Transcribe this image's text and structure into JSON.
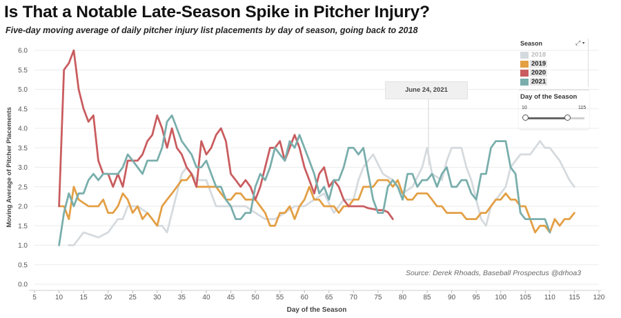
{
  "title": "Is That a Notable Late-Season Spike in Pitcher Injury?",
  "subtitle": "Five-day moving average of daily pitcher injury list placements by day of season, going back to 2018",
  "source": "Source: Derek Rhoads, Baseball Prospectus @drhoa3",
  "tooltip": "June 24, 2021",
  "legend": {
    "title": "Season",
    "controls": "⤢ ▾",
    "items": [
      {
        "label": "2018",
        "color": "#d5dade"
      },
      {
        "label": "2019",
        "color": "#e39f44"
      },
      {
        "label": "2020",
        "color": "#c95c5f"
      },
      {
        "label": "2021",
        "color": "#79aeac"
      }
    ]
  },
  "filter": {
    "title": "Day of the Season",
    "min_label": "10",
    "max_label": "115",
    "range_start": 10,
    "range_end": 115,
    "selected_end": 85
  },
  "chart_data": {
    "type": "line",
    "xlabel": "Day of the Season",
    "ylabel": "Moving Average of Pitcher Placements",
    "xlim": [
      5,
      120
    ],
    "ylim": [
      0,
      6
    ],
    "xticks": [
      "5",
      "10",
      "15",
      "20",
      "25",
      "30",
      "35",
      "40",
      "45",
      "50",
      "55",
      "60",
      "65",
      "70",
      "75",
      "80",
      "85",
      "90",
      "95",
      "100",
      "105",
      "110",
      "115",
      "120"
    ],
    "yticks": [
      "0.0",
      "0.5",
      "1.0",
      "1.5",
      "2.0",
      "2.5",
      "3.0",
      "3.5",
      "4.0",
      "4.5",
      "5.0",
      "5.5",
      "6.0"
    ],
    "series": [
      {
        "name": "2018",
        "color": "#d5dade",
        "x": [
          12,
          13,
          15,
          18,
          20,
          22,
          23,
          24,
          26,
          28,
          30,
          31,
          32,
          34,
          35,
          36,
          38,
          40,
          41,
          42,
          44,
          46,
          48,
          50,
          52,
          54,
          56,
          58,
          60,
          62,
          64,
          66,
          68,
          70,
          71,
          72,
          73,
          74,
          76,
          78,
          80,
          82,
          84,
          85,
          86,
          88,
          89,
          90,
          92,
          93,
          94,
          96,
          97,
          98,
          100,
          101,
          102,
          104,
          106,
          108,
          109,
          110,
          112,
          114,
          115
        ],
        "y": [
          1.0,
          1.0,
          1.33,
          1.2,
          1.33,
          1.67,
          1.67,
          2.0,
          2.0,
          1.83,
          1.5,
          1.5,
          1.33,
          2.33,
          2.83,
          3.0,
          2.67,
          2.67,
          2.33,
          2.0,
          2.0,
          2.0,
          2.0,
          1.83,
          1.67,
          1.67,
          1.83,
          2.0,
          2.0,
          2.17,
          2.33,
          1.83,
          2.17,
          2.17,
          2.67,
          3.0,
          3.17,
          3.33,
          2.83,
          2.67,
          2.33,
          2.5,
          3.0,
          3.5,
          2.83,
          2.67,
          3.17,
          3.5,
          3.5,
          3.0,
          2.67,
          1.67,
          1.5,
          2.0,
          2.33,
          2.5,
          3.0,
          3.33,
          3.33,
          3.67,
          3.5,
          3.5,
          3.17,
          2.67,
          2.5
        ]
      },
      {
        "name": "2019",
        "color": "#e39f44",
        "x": [
          10,
          11,
          12,
          13,
          14,
          16,
          18,
          19,
          20,
          21,
          22,
          23,
          24,
          25,
          26,
          27,
          28,
          29,
          30,
          31,
          32,
          33,
          34,
          35,
          36,
          37,
          38,
          39,
          40,
          41,
          42,
          43,
          44,
          45,
          46,
          47,
          48,
          49,
          50,
          51,
          52,
          53,
          54,
          55,
          56,
          57,
          58,
          59,
          60,
          61,
          62,
          63,
          64,
          65,
          66,
          67,
          68,
          69,
          70,
          71,
          72,
          73,
          74,
          75,
          76,
          77,
          78,
          79,
          80,
          81,
          82,
          83,
          84,
          85,
          86,
          87,
          88,
          89,
          90,
          91,
          92,
          93,
          94,
          95,
          96,
          97,
          98,
          99,
          100,
          101,
          102,
          103,
          104,
          105,
          106,
          107,
          108,
          109,
          110,
          111,
          112,
          113,
          114,
          115
        ],
        "y": [
          2.0,
          2.0,
          1.67,
          2.5,
          2.17,
          2.0,
          2.0,
          2.17,
          1.83,
          1.83,
          2.0,
          2.33,
          2.17,
          1.83,
          2.0,
          1.67,
          1.83,
          1.67,
          1.5,
          2.0,
          2.17,
          2.33,
          2.5,
          2.67,
          2.67,
          2.83,
          2.5,
          2.5,
          2.5,
          2.5,
          2.5,
          2.33,
          2.17,
          2.17,
          2.33,
          2.33,
          2.17,
          2.17,
          2.17,
          2.0,
          1.83,
          1.5,
          1.5,
          1.83,
          1.83,
          2.0,
          1.67,
          2.0,
          2.17,
          2.5,
          2.17,
          2.17,
          2.0,
          2.0,
          2.0,
          1.83,
          2.0,
          2.0,
          2.17,
          2.17,
          2.5,
          2.5,
          2.5,
          2.67,
          2.67,
          2.67,
          2.5,
          2.67,
          2.33,
          2.17,
          2.17,
          2.33,
          2.33,
          2.33,
          2.17,
          2.0,
          2.0,
          1.83,
          1.83,
          1.83,
          1.83,
          1.67,
          1.67,
          1.67,
          1.83,
          1.83,
          2.0,
          2.17,
          2.17,
          2.33,
          2.17,
          2.17,
          2.0,
          2.0,
          1.67,
          1.33,
          1.5,
          1.5,
          1.33,
          1.67,
          1.5,
          1.67,
          1.67,
          1.83
        ]
      },
      {
        "name": "2020",
        "color": "#c95c5f",
        "x": [
          10,
          11,
          12,
          13,
          14,
          15,
          16,
          17,
          18,
          19,
          20,
          21,
          22,
          23,
          24,
          25,
          26,
          27,
          28,
          29,
          30,
          31,
          32,
          33,
          34,
          35,
          36,
          37,
          38,
          39,
          40,
          41,
          42,
          43,
          44,
          45,
          46,
          47,
          48,
          49,
          50,
          51,
          52,
          53,
          54,
          55,
          56,
          57,
          58,
          59,
          60,
          61,
          62,
          63,
          64,
          65,
          66,
          67,
          68,
          69,
          70,
          71,
          72,
          73,
          74,
          75,
          76,
          77,
          78
        ],
        "y": [
          2.0,
          5.5,
          5.67,
          6.0,
          5.0,
          4.5,
          4.17,
          4.33,
          3.17,
          2.83,
          2.83,
          2.5,
          2.83,
          2.5,
          3.17,
          3.17,
          3.17,
          3.33,
          3.67,
          3.83,
          4.33,
          4.0,
          3.5,
          4.0,
          3.5,
          3.33,
          3.0,
          2.83,
          2.5,
          3.67,
          3.33,
          3.5,
          3.83,
          4.0,
          3.67,
          2.83,
          2.67,
          2.5,
          2.67,
          2.5,
          2.17,
          2.5,
          3.0,
          3.5,
          3.5,
          3.67,
          3.17,
          3.5,
          3.83,
          3.5,
          3.0,
          2.67,
          2.33,
          2.83,
          3.0,
          2.5,
          2.67,
          2.5,
          2.17,
          2.0,
          2.0,
          2.0,
          2.0,
          1.95,
          1.93,
          1.9,
          1.9,
          1.85,
          1.67
        ]
      },
      {
        "name": "2021",
        "color": "#79aeac",
        "x": [
          10,
          11,
          12,
          13,
          14,
          15,
          16,
          17,
          18,
          19,
          20,
          21,
          22,
          23,
          24,
          25,
          26,
          27,
          28,
          29,
          30,
          31,
          32,
          33,
          34,
          35,
          36,
          37,
          38,
          39,
          40,
          41,
          42,
          43,
          44,
          45,
          46,
          47,
          48,
          49,
          50,
          51,
          52,
          53,
          54,
          55,
          56,
          57,
          58,
          59,
          60,
          61,
          62,
          63,
          64,
          65,
          66,
          67,
          68,
          69,
          70,
          71,
          72,
          73,
          74,
          75,
          76,
          77,
          78,
          79,
          80,
          81,
          82,
          83,
          84,
          85,
          86,
          87,
          88,
          89,
          90,
          91,
          92,
          93,
          94,
          95,
          96,
          97,
          98,
          99,
          100,
          101,
          102,
          103,
          104,
          105,
          106,
          107,
          108,
          109,
          110
        ],
        "y": [
          1.0,
          1.83,
          2.33,
          2.0,
          2.33,
          2.33,
          2.67,
          2.83,
          2.67,
          2.83,
          2.83,
          2.83,
          2.83,
          3.0,
          3.33,
          3.17,
          3.0,
          2.83,
          3.17,
          3.17,
          3.17,
          3.5,
          4.17,
          4.33,
          4.0,
          3.67,
          3.5,
          3.33,
          3.0,
          3.0,
          3.17,
          2.83,
          2.5,
          2.5,
          2.17,
          2.0,
          1.67,
          1.67,
          1.83,
          1.83,
          2.5,
          2.83,
          2.67,
          3.0,
          3.5,
          3.33,
          3.17,
          3.67,
          3.5,
          3.83,
          3.5,
          3.17,
          2.83,
          2.33,
          2.5,
          2.17,
          2.67,
          2.67,
          3.0,
          3.5,
          3.5,
          3.33,
          3.5,
          2.83,
          2.17,
          1.83,
          1.83,
          2.5,
          2.67,
          2.5,
          2.17,
          2.83,
          2.83,
          2.5,
          2.67,
          2.67,
          2.83,
          2.5,
          2.83,
          3.0,
          2.5,
          2.5,
          2.67,
          2.67,
          2.33,
          2.17,
          2.83,
          2.83,
          3.5,
          3.67,
          3.67,
          3.67,
          3.0,
          2.83,
          1.83,
          1.67,
          1.67,
          1.67,
          1.67,
          1.67,
          1.33
        ]
      }
    ]
  }
}
